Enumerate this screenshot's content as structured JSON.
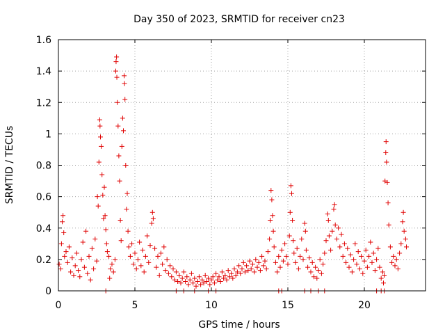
{
  "chart_data": {
    "type": "scatter",
    "title": "Day 350 of 2023, SRMTID for receiver cn23",
    "xlabel": "GPS time / hours",
    "ylabel": "SRMTID / TECUs",
    "xlim": [
      0,
      24
    ],
    "ylim": [
      0,
      1.6
    ],
    "xticks": [
      0,
      5,
      10,
      15,
      20
    ],
    "xtick_labels": [
      "0",
      "5",
      "10",
      "15",
      "20"
    ],
    "yticks": [
      0,
      0.2,
      0.4,
      0.6,
      0.8,
      1.0,
      1.2,
      1.4,
      1.6
    ],
    "ytick_labels": [
      "0",
      "0.2",
      "0.4",
      "0.6",
      "0.8",
      "1",
      "1.2",
      "1.4",
      "1.6"
    ],
    "grid": true,
    "marker": "+",
    "series_color": "#e00000",
    "series": [
      {
        "name": "cn23",
        "points": [
          [
            0.05,
            0.17
          ],
          [
            0.15,
            0.14
          ],
          [
            0.2,
            0.3
          ],
          [
            0.25,
            0.44
          ],
          [
            0.3,
            0.48
          ],
          [
            0.35,
            0.37
          ],
          [
            0.4,
            0.22
          ],
          [
            0.5,
            0.25
          ],
          [
            0.6,
            0.18
          ],
          [
            0.7,
            0.28
          ],
          [
            0.8,
            0.12
          ],
          [
            0.9,
            0.21
          ],
          [
            1.0,
            0.1
          ],
          [
            1.1,
            0.16
          ],
          [
            1.2,
            0.24
          ],
          [
            1.3,
            0.13
          ],
          [
            1.4,
            0.09
          ],
          [
            1.5,
            0.2
          ],
          [
            1.6,
            0.31
          ],
          [
            1.7,
            0.15
          ],
          [
            1.8,
            0.38
          ],
          [
            1.9,
            0.11
          ],
          [
            2.0,
            0.22
          ],
          [
            2.1,
            0.07
          ],
          [
            2.2,
            0.27
          ],
          [
            2.3,
            0.14
          ],
          [
            2.4,
            0.33
          ],
          [
            2.5,
            0.19
          ],
          [
            2.55,
            0.6
          ],
          [
            2.6,
            0.54
          ],
          [
            2.65,
            0.82
          ],
          [
            2.7,
            1.09
          ],
          [
            2.72,
            1.05
          ],
          [
            2.75,
            0.98
          ],
          [
            2.8,
            0.92
          ],
          [
            2.85,
            0.74
          ],
          [
            2.9,
            0.61
          ],
          [
            2.95,
            0.46
          ],
          [
            3.0,
            0.66
          ],
          [
            3.05,
            0.48
          ],
          [
            3.1,
            0.39
          ],
          [
            3.15,
            0.3
          ],
          [
            3.2,
            0.25
          ],
          [
            3.3,
            0.22
          ],
          [
            3.35,
            0.08
          ],
          [
            3.4,
            0.14
          ],
          [
            3.5,
            0.17
          ],
          [
            3.6,
            0.12
          ],
          [
            3.7,
            0.2
          ],
          [
            3.75,
            1.4
          ],
          [
            3.77,
            1.46
          ],
          [
            3.8,
            1.49
          ],
          [
            3.82,
            1.36
          ],
          [
            3.85,
            1.2
          ],
          [
            3.9,
            1.05
          ],
          [
            3.95,
            0.86
          ],
          [
            4.0,
            0.7
          ],
          [
            4.05,
            0.45
          ],
          [
            4.1,
            0.32
          ],
          [
            4.15,
            0.92
          ],
          [
            4.2,
            1.1
          ],
          [
            4.25,
            1.02
          ],
          [
            4.3,
            1.37
          ],
          [
            4.32,
            1.32
          ],
          [
            4.35,
            1.22
          ],
          [
            4.4,
            0.8
          ],
          [
            4.45,
            0.52
          ],
          [
            4.5,
            0.62
          ],
          [
            4.55,
            0.38
          ],
          [
            4.6,
            0.28
          ],
          [
            4.7,
            0.22
          ],
          [
            4.8,
            0.3
          ],
          [
            4.9,
            0.17
          ],
          [
            5.0,
            0.24
          ],
          [
            5.1,
            0.14
          ],
          [
            5.2,
            0.2
          ],
          [
            5.3,
            0.31
          ],
          [
            5.4,
            0.16
          ],
          [
            5.5,
            0.26
          ],
          [
            5.6,
            0.12
          ],
          [
            5.7,
            0.22
          ],
          [
            5.8,
            0.35
          ],
          [
            5.9,
            0.18
          ],
          [
            6.0,
            0.29
          ],
          [
            6.1,
            0.43
          ],
          [
            6.15,
            0.5
          ],
          [
            6.2,
            0.46
          ],
          [
            6.3,
            0.27
          ],
          [
            6.4,
            0.15
          ],
          [
            6.5,
            0.22
          ],
          [
            6.6,
            0.1
          ],
          [
            6.7,
            0.24
          ],
          [
            6.8,
            0.17
          ],
          [
            6.9,
            0.28
          ],
          [
            7.0,
            0.13
          ],
          [
            7.1,
            0.2
          ],
          [
            7.2,
            0.11
          ],
          [
            7.3,
            0.16
          ],
          [
            7.4,
            0.09
          ],
          [
            7.5,
            0.14
          ],
          [
            7.6,
            0.07
          ],
          [
            7.7,
            0.12
          ],
          [
            7.8,
            0.06
          ],
          [
            7.9,
            0.1
          ],
          [
            8.0,
            0.05
          ],
          [
            8.1,
            0.08
          ],
          [
            8.2,
            0.12
          ],
          [
            8.3,
            0.06
          ],
          [
            8.4,
            0.09
          ],
          [
            8.5,
            0.04
          ],
          [
            8.6,
            0.07
          ],
          [
            8.7,
            0.11
          ],
          [
            8.8,
            0.05
          ],
          [
            8.9,
            0.08
          ],
          [
            9.0,
            0.03
          ],
          [
            9.1,
            0.06
          ],
          [
            9.2,
            0.09
          ],
          [
            9.3,
            0.04
          ],
          [
            9.4,
            0.07
          ],
          [
            9.5,
            0.05
          ],
          [
            9.6,
            0.1
          ],
          [
            9.7,
            0.06
          ],
          [
            9.8,
            0.08
          ],
          [
            9.9,
            0.04
          ],
          [
            10.0,
            0.07
          ],
          [
            10.1,
            0.09
          ],
          [
            10.2,
            0.05
          ],
          [
            10.3,
            0.11
          ],
          [
            10.4,
            0.07
          ],
          [
            10.5,
            0.09
          ],
          [
            10.6,
            0.06
          ],
          [
            10.7,
            0.12
          ],
          [
            10.8,
            0.08
          ],
          [
            10.9,
            0.1
          ],
          [
            11.0,
            0.07
          ],
          [
            11.1,
            0.13
          ],
          [
            11.2,
            0.09
          ],
          [
            11.3,
            0.11
          ],
          [
            11.4,
            0.08
          ],
          [
            11.5,
            0.14
          ],
          [
            11.6,
            0.1
          ],
          [
            11.7,
            0.12
          ],
          [
            11.8,
            0.16
          ],
          [
            11.9,
            0.11
          ],
          [
            12.0,
            0.14
          ],
          [
            12.1,
            0.18
          ],
          [
            12.2,
            0.12
          ],
          [
            12.3,
            0.16
          ],
          [
            12.4,
            0.13
          ],
          [
            12.5,
            0.19
          ],
          [
            12.6,
            0.14
          ],
          [
            12.7,
            0.17
          ],
          [
            12.8,
            0.12
          ],
          [
            12.9,
            0.2
          ],
          [
            13.0,
            0.15
          ],
          [
            13.1,
            0.18
          ],
          [
            13.2,
            0.13
          ],
          [
            13.3,
            0.22
          ],
          [
            13.4,
            0.16
          ],
          [
            13.5,
            0.19
          ],
          [
            13.6,
            0.14
          ],
          [
            13.7,
            0.25
          ],
          [
            13.8,
            0.33
          ],
          [
            13.85,
            0.45
          ],
          [
            13.9,
            0.64
          ],
          [
            13.95,
            0.58
          ],
          [
            14.0,
            0.48
          ],
          [
            14.05,
            0.38
          ],
          [
            14.1,
            0.28
          ],
          [
            14.2,
            0.18
          ],
          [
            14.3,
            0.12
          ],
          [
            14.4,
            0.22
          ],
          [
            14.5,
            0.15
          ],
          [
            14.6,
            0.26
          ],
          [
            14.7,
            0.19
          ],
          [
            14.8,
            0.3
          ],
          [
            14.9,
            0.22
          ],
          [
            15.0,
            0.17
          ],
          [
            15.1,
            0.35
          ],
          [
            15.15,
            0.5
          ],
          [
            15.2,
            0.67
          ],
          [
            15.25,
            0.62
          ],
          [
            15.3,
            0.45
          ],
          [
            15.35,
            0.32
          ],
          [
            15.4,
            0.24
          ],
          [
            15.5,
            0.18
          ],
          [
            15.6,
            0.27
          ],
          [
            15.7,
            0.14
          ],
          [
            15.8,
            0.22
          ],
          [
            15.9,
            0.33
          ],
          [
            16.0,
            0.2
          ],
          [
            16.1,
            0.43
          ],
          [
            16.15,
            0.38
          ],
          [
            16.2,
            0.26
          ],
          [
            16.3,
            0.15
          ],
          [
            16.4,
            0.21
          ],
          [
            16.5,
            0.12
          ],
          [
            16.6,
            0.18
          ],
          [
            16.7,
            0.09
          ],
          [
            16.8,
            0.15
          ],
          [
            16.9,
            0.08
          ],
          [
            17.0,
            0.13
          ],
          [
            17.1,
            0.2
          ],
          [
            17.2,
            0.11
          ],
          [
            17.3,
            0.17
          ],
          [
            17.4,
            0.24
          ],
          [
            17.5,
            0.32
          ],
          [
            17.6,
            0.49
          ],
          [
            17.65,
            0.45
          ],
          [
            17.7,
            0.35
          ],
          [
            17.8,
            0.26
          ],
          [
            17.9,
            0.38
          ],
          [
            18.0,
            0.52
          ],
          [
            18.05,
            0.55
          ],
          [
            18.1,
            0.42
          ],
          [
            18.2,
            0.33
          ],
          [
            18.3,
            0.4
          ],
          [
            18.4,
            0.28
          ],
          [
            18.5,
            0.36
          ],
          [
            18.6,
            0.22
          ],
          [
            18.7,
            0.3
          ],
          [
            18.8,
            0.18
          ],
          [
            18.9,
            0.27
          ],
          [
            19.0,
            0.15
          ],
          [
            19.1,
            0.23
          ],
          [
            19.2,
            0.12
          ],
          [
            19.3,
            0.2
          ],
          [
            19.4,
            0.3
          ],
          [
            19.5,
            0.17
          ],
          [
            19.6,
            0.25
          ],
          [
            19.7,
            0.14
          ],
          [
            19.8,
            0.22
          ],
          [
            19.9,
            0.11
          ],
          [
            20.0,
            0.19
          ],
          [
            20.1,
            0.26
          ],
          [
            20.2,
            0.15
          ],
          [
            20.3,
            0.22
          ],
          [
            20.4,
            0.31
          ],
          [
            20.5,
            0.18
          ],
          [
            20.6,
            0.24
          ],
          [
            20.7,
            0.13
          ],
          [
            20.8,
            0.2
          ],
          [
            20.9,
            0.27
          ],
          [
            21.0,
            0.15
          ],
          [
            21.1,
            0.08
          ],
          [
            21.2,
            0.12
          ],
          [
            21.25,
            0.05
          ],
          [
            21.3,
            0.1
          ],
          [
            21.35,
            0.7
          ],
          [
            21.4,
            0.88
          ],
          [
            21.42,
            0.95
          ],
          [
            21.45,
            0.82
          ],
          [
            21.5,
            0.69
          ],
          [
            21.55,
            0.56
          ],
          [
            21.6,
            0.42
          ],
          [
            21.7,
            0.28
          ],
          [
            21.8,
            0.18
          ],
          [
            21.9,
            0.22
          ],
          [
            22.0,
            0.16
          ],
          [
            22.1,
            0.2
          ],
          [
            22.2,
            0.14
          ],
          [
            22.3,
            0.24
          ],
          [
            22.4,
            0.3
          ],
          [
            22.5,
            0.44
          ],
          [
            22.55,
            0.5
          ],
          [
            22.6,
            0.38
          ],
          [
            22.7,
            0.33
          ],
          [
            22.75,
            0.28
          ],
          [
            3.1,
            0
          ],
          [
            7.7,
            0
          ],
          [
            8.2,
            0
          ],
          [
            8.9,
            0
          ],
          [
            9.8,
            0
          ],
          [
            10.3,
            0
          ],
          [
            14.4,
            0
          ],
          [
            14.6,
            0
          ],
          [
            16.1,
            0
          ],
          [
            16.5,
            0
          ],
          [
            17.0,
            0
          ],
          [
            17.4,
            0
          ],
          [
            20.8,
            0
          ],
          [
            21.1,
            0
          ],
          [
            21.3,
            0
          ]
        ]
      }
    ]
  }
}
